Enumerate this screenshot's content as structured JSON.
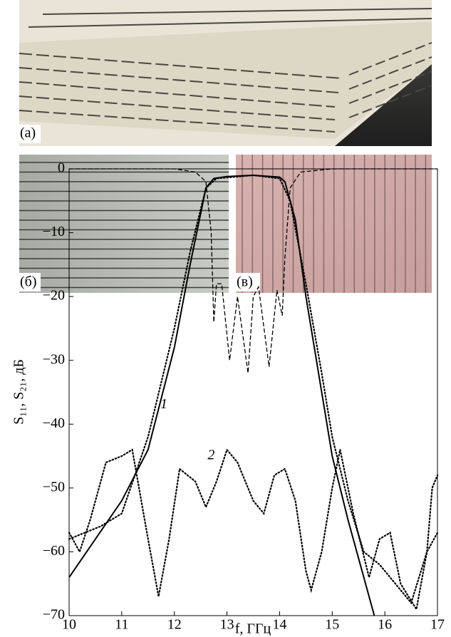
{
  "photo_labels": [
    "(a)",
    "(б)",
    "(в)"
  ],
  "chart_data": {
    "type": "line",
    "xlabel": "f, ГГц",
    "ylabel": "S₁₁, S₂₁, дБ",
    "xlim": [
      10,
      17
    ],
    "ylim": [
      -70,
      0
    ],
    "xticks": [
      10,
      11,
      12,
      13,
      14,
      15,
      16,
      17
    ],
    "yticks": [
      0,
      {
        "value": -10,
        "label": "−10"
      },
      {
        "value": -20,
        "label": "−20"
      },
      {
        "value": -30,
        "label": "−30"
      },
      {
        "value": -40,
        "label": "−40"
      },
      {
        "value": -50,
        "label": "−50"
      },
      {
        "value": -60,
        "label": "−60"
      },
      {
        "value": -70,
        "label": "−70"
      }
    ],
    "annotations": [
      {
        "text": "1",
        "x": 11.8,
        "y": -37
      },
      {
        "text": "2",
        "x": 12.7,
        "y": -45
      }
    ],
    "series": [
      {
        "color": "#000",
        "style": "solid",
        "x": [
          10,
          11,
          11.5,
          12,
          12.3,
          12.6,
          12.75,
          13,
          13.5,
          14,
          14.1,
          14.3,
          14.5,
          14.8,
          15,
          15.3,
          15.6,
          15.8
        ],
        "values": [
          -64,
          -52,
          -44,
          -28,
          -15,
          -3,
          -1.5,
          -1.2,
          -1,
          -1.3,
          -2,
          -8,
          -20,
          -35,
          -45,
          -55,
          -64,
          -70
        ]
      },
      {
        "color": "#000",
        "style": "dashed",
        "x": [
          10,
          12,
          12.4,
          12.6,
          12.7,
          12.75,
          12.8,
          12.9,
          13.05,
          13.2,
          13.4,
          13.5,
          13.6,
          13.8,
          13.95,
          14.05,
          14.1,
          14.2,
          14.4,
          15,
          17
        ],
        "values": [
          0,
          0,
          -0.5,
          -2,
          -10,
          -24,
          -18,
          -18,
          -30,
          -20,
          -32,
          -20,
          -18.5,
          -31,
          -19,
          -23,
          -14,
          -3,
          -0.5,
          0,
          0
        ]
      },
      {
        "color": "#000",
        "style": "dotted",
        "x": [
          10,
          10.3,
          10.6,
          11,
          11.5,
          12,
          12.3,
          12.6,
          12.8,
          13.5,
          14,
          14.2,
          14.5,
          14.8,
          15,
          15.3,
          15.6,
          15.9,
          16.2,
          16.5,
          16.8,
          17
        ],
        "values": [
          -58,
          -57,
          -56,
          -54,
          -42,
          -25,
          -13,
          -3,
          -1.5,
          -1,
          -1.5,
          -5,
          -18,
          -32,
          -42,
          -52,
          -60,
          -62,
          -65,
          -68,
          -60,
          -57
        ]
      },
      {
        "color": "#000",
        "style": "dotted",
        "x": [
          10,
          10.2,
          10.4,
          10.7,
          11,
          11.2,
          11.5,
          11.7,
          11.9,
          12.1,
          12.4,
          12.6,
          12.8,
          13,
          13.2,
          13.5,
          13.7,
          13.9,
          14.1,
          14.3,
          14.5,
          14.6,
          14.8,
          15,
          15.15,
          15.4,
          15.7,
          15.9,
          16.1,
          16.3,
          16.6,
          16.8,
          16.9,
          17
        ],
        "values": [
          -57,
          -60,
          -55,
          -46,
          -45,
          -44,
          -58,
          -67,
          -58,
          -47,
          -49,
          -53,
          -49,
          -44,
          -46,
          -52,
          -54,
          -48,
          -47,
          -52,
          -63,
          -66,
          -60,
          -50,
          -44,
          -54,
          -64,
          -58,
          -57,
          -65,
          -69,
          -60,
          -50,
          -48
        ]
      }
    ]
  }
}
